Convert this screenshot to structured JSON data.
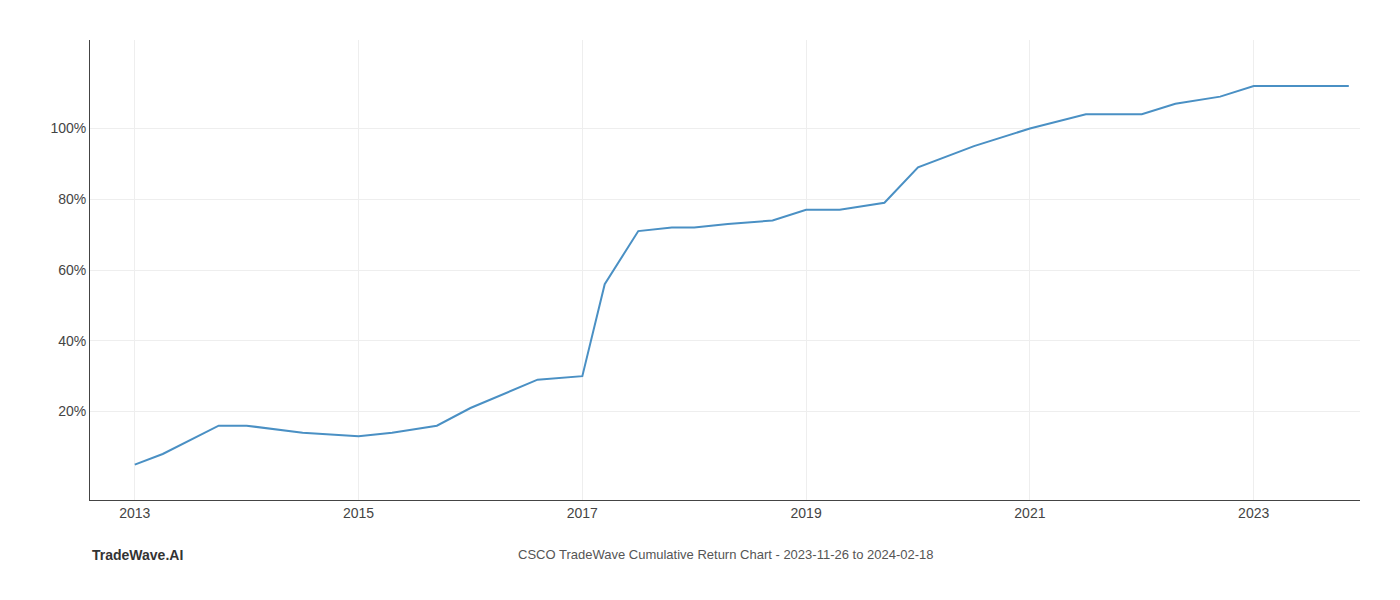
{
  "chart_data": {
    "type": "line",
    "x": [
      2013.0,
      2013.25,
      2013.75,
      2014.0,
      2014.5,
      2015.0,
      2015.3,
      2015.7,
      2016.0,
      2016.3,
      2016.6,
      2017.0,
      2017.2,
      2017.5,
      2017.8,
      2018.0,
      2018.3,
      2018.7,
      2019.0,
      2019.3,
      2019.7,
      2020.0,
      2020.5,
      2021.0,
      2021.5,
      2022.0,
      2022.3,
      2022.7,
      2023.0,
      2023.5,
      2023.85
    ],
    "values": [
      5,
      8,
      16,
      16,
      14,
      13,
      14,
      16,
      21,
      25,
      29,
      30,
      56,
      71,
      72,
      72,
      73,
      74,
      77,
      77,
      79,
      89,
      95,
      100,
      104,
      104,
      107,
      109,
      112,
      112,
      112
    ],
    "color": "#4a90c4",
    "xlim": [
      2012.6,
      2023.95
    ],
    "xticks": [
      2013,
      2015,
      2017,
      2019,
      2021,
      2023
    ],
    "ylim": [
      -5,
      125
    ],
    "yticks": [
      {
        "value": 20,
        "label": "20%"
      },
      {
        "value": 40,
        "label": "40%"
      },
      {
        "value": 60,
        "label": "60%"
      },
      {
        "value": 80,
        "label": "80%"
      },
      {
        "value": 100,
        "label": "100%"
      }
    ],
    "grid": true,
    "annotations": [
      "TradeWave.AI",
      "CSCO TradeWave Cumulative Return Chart - 2023-11-26 to 2024-02-18"
    ]
  }
}
